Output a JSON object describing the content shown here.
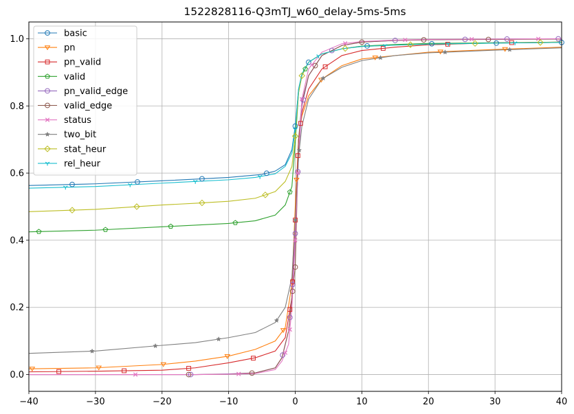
{
  "chart_data": {
    "type": "line",
    "title": "1522828116-Q3mTJ_w60_delay-5ms-5ms",
    "xlabel": "",
    "ylabel": "",
    "xlim": [
      -40,
      40
    ],
    "ylim": [
      -0.05,
      1.05
    ],
    "xticks": [
      -40,
      -30,
      -20,
      -10,
      0,
      10,
      20,
      30,
      40
    ],
    "xtick_labels": [
      "−40",
      "−30",
      "−20",
      "−10",
      "0",
      "10",
      "20",
      "30",
      "40"
    ],
    "yticks": [
      0.0,
      0.2,
      0.4,
      0.6,
      0.8,
      1.0
    ],
    "ytick_labels": [
      "0.0",
      "0.2",
      "0.4",
      "0.6",
      "0.8",
      "1.0"
    ],
    "grid": true,
    "legend_position": "top-left",
    "series": [
      {
        "name": "basic",
        "color": "#1f77b4",
        "marker": "circle",
        "x": [
          -40,
          -30,
          -20,
          -15,
          -10,
          -5,
          -3,
          -1.5,
          -0.5,
          0,
          0.5,
          1,
          2,
          4,
          7,
          10,
          15,
          20,
          30,
          40
        ],
        "y": [
          0.563,
          0.568,
          0.577,
          0.582,
          0.587,
          0.596,
          0.606,
          0.625,
          0.67,
          0.74,
          0.85,
          0.895,
          0.93,
          0.955,
          0.97,
          0.978,
          0.982,
          0.985,
          0.987,
          0.989
        ],
        "marker_x": [
          -33.5,
          -23.7,
          -14,
          -4.3,
          0,
          2,
          10.8,
          20.5,
          30.2,
          40
        ]
      },
      {
        "name": "pn",
        "color": "#ff7f0e",
        "marker": "triangle-down",
        "x": [
          -40,
          -30,
          -20,
          -15,
          -10,
          -6,
          -3,
          -1.5,
          -0.5,
          0,
          0.5,
          1,
          2,
          4,
          7,
          10,
          15,
          20,
          30,
          40
        ],
        "y": [
          0.017,
          0.02,
          0.03,
          0.04,
          0.055,
          0.075,
          0.1,
          0.14,
          0.27,
          0.5,
          0.7,
          0.77,
          0.83,
          0.88,
          0.92,
          0.94,
          0.95,
          0.96,
          0.968,
          0.975
        ],
        "marker_x": [
          -39.5,
          -29.5,
          -19.8,
          -10.2,
          -1.8,
          0.2,
          3.9,
          12,
          21.8,
          31.5
        ]
      },
      {
        "name": "pn_valid",
        "color": "#d62728",
        "marker": "square",
        "x": [
          -40,
          -30,
          -20,
          -15,
          -10,
          -6,
          -3,
          -1.5,
          -0.5,
          0,
          0.5,
          1,
          2,
          4,
          7,
          10,
          15,
          20,
          30,
          40
        ],
        "y": [
          0.008,
          0.01,
          0.013,
          0.02,
          0.035,
          0.05,
          0.07,
          0.11,
          0.23,
          0.46,
          0.7,
          0.78,
          0.85,
          0.91,
          0.95,
          0.965,
          0.975,
          0.982,
          0.988,
          0.99
        ],
        "marker_x": [
          -35.5,
          -25.7,
          -16,
          -6.3,
          -0.8,
          -0.4,
          0,
          0.4,
          0.8,
          4.5,
          13.2,
          22.9,
          32.5
        ]
      },
      {
        "name": "valid",
        "color": "#2ca02c",
        "marker": "pentagon",
        "x": [
          -40,
          -30,
          -20,
          -15,
          -10,
          -6,
          -3,
          -1.5,
          -0.5,
          0,
          0.5,
          1,
          2,
          4,
          7,
          10,
          15,
          20,
          30,
          40
        ],
        "y": [
          0.425,
          0.43,
          0.44,
          0.445,
          0.45,
          0.458,
          0.475,
          0.505,
          0.56,
          0.69,
          0.84,
          0.89,
          0.93,
          0.955,
          0.97,
          0.978,
          0.983,
          0.986,
          0.988,
          0.99
        ],
        "marker_x": [
          -38.5,
          -28.5,
          -18.7,
          -9,
          -0.8,
          1.5
        ]
      },
      {
        "name": "pn_valid_edge",
        "color": "#9467bd",
        "marker": "circle",
        "x": [
          -40,
          -30,
          -20,
          -15,
          -10,
          -6,
          -3,
          -2,
          -1,
          -0.5,
          0,
          0.5,
          1,
          2,
          4,
          7,
          10,
          15,
          20,
          30,
          40
        ],
        "y": [
          0.0,
          0.0,
          0.0,
          0.0,
          0.002,
          0.005,
          0.02,
          0.05,
          0.13,
          0.23,
          0.42,
          0.65,
          0.8,
          0.89,
          0.95,
          0.98,
          0.99,
          0.995,
          0.997,
          0.999,
          1.0
        ],
        "marker_x": [
          -15.7,
          -1.9,
          -0.8,
          -0.4,
          0,
          0.4,
          1.2,
          5.5,
          15,
          25.5,
          31.8,
          39.5
        ]
      },
      {
        "name": "valid_edge",
        "color": "#8c564b",
        "marker": "circle",
        "x": [
          -40,
          -30,
          -20,
          -15,
          -10,
          -6,
          -3,
          -2,
          -1,
          -0.5,
          0,
          0.5,
          1,
          2,
          4,
          7,
          10,
          15,
          20,
          30,
          40
        ],
        "y": [
          0.0,
          0.0,
          0.0,
          0.0,
          0.001,
          0.005,
          0.02,
          0.05,
          0.13,
          0.23,
          0.32,
          0.7,
          0.81,
          0.89,
          0.95,
          0.98,
          0.99,
          0.995,
          0.997,
          0.998,
          0.999
        ],
        "marker_x": [
          -16,
          -6.5,
          -0.4,
          0,
          3,
          10,
          19.3,
          29
        ]
      },
      {
        "name": "status",
        "color": "#e377c2",
        "marker": "x",
        "x": [
          -40,
          -30,
          -20,
          -15,
          -10,
          -6,
          -3,
          -2,
          -1,
          -0.5,
          0,
          0.5,
          1,
          2,
          4,
          7,
          10,
          15,
          20,
          30,
          40
        ],
        "y": [
          0.0,
          0.0,
          0.0,
          0.0,
          0.001,
          0.003,
          0.015,
          0.04,
          0.09,
          0.2,
          0.4,
          0.65,
          0.82,
          0.91,
          0.96,
          0.985,
          0.992,
          0.996,
          0.998,
          0.999,
          1.0
        ],
        "marker_x": [
          -24,
          -8.5,
          -1.5,
          -0.8,
          0,
          0.4,
          1,
          2.5,
          7.5,
          16.5,
          26.5,
          36.5
        ]
      },
      {
        "name": "two_bit",
        "color": "#7f7f7f",
        "marker": "star",
        "x": [
          -40,
          -30,
          -20,
          -15,
          -10,
          -6,
          -3,
          -1.5,
          -0.5,
          0,
          0.5,
          1,
          2,
          4,
          7,
          10,
          15,
          20,
          30,
          40
        ],
        "y": [
          0.063,
          0.07,
          0.087,
          0.095,
          0.11,
          0.125,
          0.155,
          0.2,
          0.29,
          0.46,
          0.65,
          0.74,
          0.82,
          0.88,
          0.915,
          0.935,
          0.95,
          0.958,
          0.966,
          0.973
        ],
        "marker_x": [
          -30.5,
          -21,
          -11.5,
          -2.8,
          0,
          0.6,
          4.2,
          12.8,
          22.5,
          32.2
        ]
      },
      {
        "name": "stat_heur",
        "color": "#bcbd22",
        "marker": "diamond",
        "x": [
          -40,
          -30,
          -20,
          -15,
          -10,
          -6,
          -3,
          -1.5,
          -0.5,
          0,
          0.5,
          1,
          2,
          4,
          7,
          10,
          15,
          20,
          30,
          40
        ],
        "y": [
          0.485,
          0.492,
          0.505,
          0.51,
          0.516,
          0.525,
          0.545,
          0.575,
          0.62,
          0.71,
          0.84,
          0.89,
          0.93,
          0.955,
          0.97,
          0.977,
          0.981,
          0.984,
          0.987,
          0.99
        ],
        "marker_x": [
          -33.5,
          -23.8,
          -14,
          -4.5,
          0,
          1,
          7.5,
          17.3,
          27,
          36.8
        ]
      },
      {
        "name": "rel_heur",
        "color": "#17becf",
        "marker": "tri-down",
        "x": [
          -40,
          -30,
          -20,
          -15,
          -10,
          -6,
          -3,
          -1.5,
          -0.5,
          0,
          0.5,
          1,
          2,
          4,
          7,
          10,
          15,
          20,
          30,
          40
        ],
        "y": [
          0.555,
          0.56,
          0.57,
          0.575,
          0.58,
          0.587,
          0.598,
          0.62,
          0.66,
          0.73,
          0.85,
          0.895,
          0.93,
          0.955,
          0.97,
          0.977,
          0.981,
          0.984,
          0.987,
          0.989
        ],
        "marker_x": [
          -34.5,
          -24.8,
          -15,
          -5.3,
          0,
          3.5,
          13.5,
          23,
          33
        ]
      }
    ]
  }
}
